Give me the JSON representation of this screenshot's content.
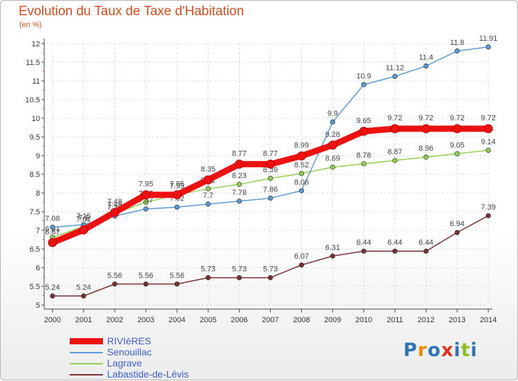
{
  "chart_data": {
    "type": "line",
    "title": "Evolution du Taux de Taxe d'Habitation",
    "unit_label": "(en %)",
    "xlabel": "",
    "ylabel": "",
    "x": [
      2000,
      2001,
      2002,
      2003,
      2004,
      2005,
      2006,
      2007,
      2008,
      2009,
      2010,
      2011,
      2012,
      2013,
      2014
    ],
    "ylim": [
      5,
      12
    ],
    "yticks": [
      5,
      5.5,
      6,
      6.5,
      7,
      7.5,
      8,
      8.5,
      9,
      9.5,
      10,
      10.5,
      11,
      11.5,
      12
    ],
    "grid": true,
    "legend_position": "bottom-left",
    "series": [
      {
        "name": "RIVIèRES",
        "color": "#ee1111",
        "values": [
          6.67,
          7.01,
          7.48,
          7.95,
          7.95,
          8.35,
          8.77,
          8.77,
          8.99,
          9.28,
          9.65,
          9.72,
          9.72,
          9.72,
          9.72
        ]
      },
      {
        "name": "Senouillac",
        "color": "#5b9bd5",
        "values": [
          7.08,
          7.15,
          7.38,
          7.57,
          7.62,
          7.7,
          7.78,
          7.86,
          8.06,
          9.9,
          10.9,
          11.12,
          11.4,
          11.8,
          11.91
        ]
      },
      {
        "name": "Lagrave",
        "color": "#92d050",
        "values": [
          6.81,
          7.1,
          7.45,
          7.75,
          7.95,
          8.11,
          8.23,
          8.39,
          8.52,
          8.69,
          8.78,
          8.87,
          8.96,
          9.05,
          9.14
        ]
      },
      {
        "name": "Labastide-de-Lévis",
        "color": "#7a2f2f",
        "values": [
          5.24,
          5.24,
          5.56,
          5.56,
          5.56,
          5.73,
          5.73,
          5.73,
          6.07,
          6.31,
          6.44,
          6.44,
          6.44,
          6.94,
          7.39
        ]
      }
    ]
  },
  "logo": {
    "letters": [
      "P",
      "r",
      "o",
      "x",
      "i",
      "t",
      "i"
    ],
    "colors": [
      "#2e75b6",
      "#f08c00",
      "#2e75b6",
      "#e0301e",
      "#2e75b6",
      "#8cbe1e",
      "#2e75b6"
    ]
  }
}
